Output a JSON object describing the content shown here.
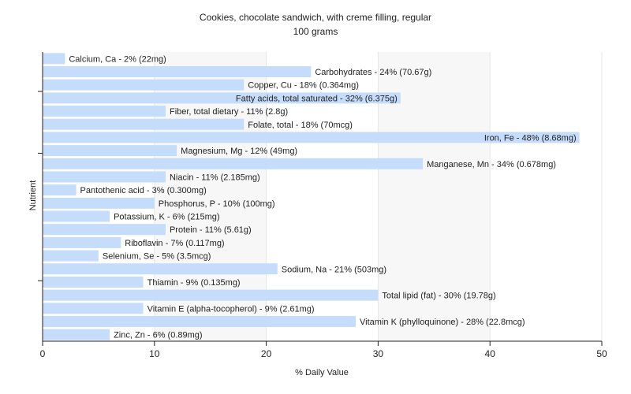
{
  "chart_data": {
    "type": "bar",
    "orientation": "horizontal",
    "title": "Cookies, chocolate sandwich, with creme filling, regular",
    "subtitle": "100 grams",
    "xlabel": "% Daily Value",
    "ylabel": "Nutrient",
    "xlim": [
      0,
      50
    ],
    "xticks": [
      "0",
      "10",
      "20",
      "30",
      "40",
      "50"
    ],
    "grid": true,
    "colors": {
      "bar": "#c6dcfb",
      "axis": "#222222",
      "grid": "#e6e6e6",
      "background_stripe": "#f7f7f7"
    },
    "categories": [
      "Calcium, Ca",
      "Carbohydrates",
      "Copper, Cu",
      "Fatty acids, total saturated",
      "Fiber, total dietary",
      "Folate, total",
      "Iron, Fe",
      "Magnesium, Mg",
      "Manganese, Mn",
      "Niacin",
      "Pantothenic acid",
      "Phosphorus, P",
      "Potassium, K",
      "Protein",
      "Riboflavin",
      "Selenium, Se",
      "Sodium, Na",
      "Thiamin",
      "Total lipid (fat)",
      "Vitamin E (alpha-tocopherol)",
      "Vitamin K (phylloquinone)",
      "Zinc, Zn"
    ],
    "values": [
      2,
      24,
      18,
      32,
      11,
      18,
      48,
      12,
      34,
      11,
      3,
      10,
      6,
      11,
      7,
      5,
      21,
      9,
      30,
      9,
      28,
      6
    ],
    "labels": [
      "Calcium, Ca - 2% (22mg)",
      "Carbohydrates - 24% (70.67g)",
      "Copper, Cu - 18% (0.364mg)",
      "Fatty acids, total saturated - 32% (6.375g)",
      "Fiber, total dietary - 11% (2.8g)",
      "Folate, total - 18% (70mcg)",
      "Iron, Fe - 48% (8.68mg)",
      "Magnesium, Mg - 12% (49mg)",
      "Manganese, Mn - 34% (0.678mg)",
      "Niacin - 11% (2.185mg)",
      "Pantothenic acid - 3% (0.300mg)",
      "Phosphorus, P - 10% (100mg)",
      "Potassium, K - 6% (215mg)",
      "Protein - 11% (5.61g)",
      "Riboflavin - 7% (0.117mg)",
      "Selenium, Se - 5% (3.5mcg)",
      "Sodium, Na - 21% (503mg)",
      "Thiamin - 9% (0.135mg)",
      "Total lipid (fat) - 30% (19.78g)",
      "Vitamin E (alpha-tocopherol) - 9% (2.61mg)",
      "Vitamin K (phylloquinone) - 28% (22.8mcg)",
      "Zinc, Zn - 6% (0.89mg)"
    ]
  }
}
